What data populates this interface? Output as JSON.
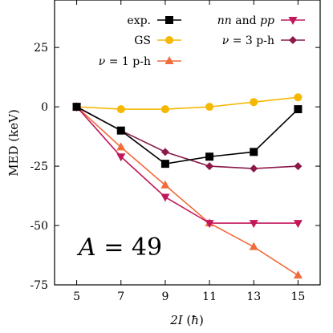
{
  "chart_data": {
    "type": "line",
    "title": "",
    "xlabel": "2I (ħ)",
    "ylabel": "MED (keV)",
    "x": [
      5,
      7,
      9,
      11,
      13,
      15
    ],
    "xlim": [
      4,
      16
    ],
    "ylim": [
      -75,
      45
    ],
    "xticks": [
      5,
      7,
      9,
      11,
      13,
      15
    ],
    "yticks": [
      25,
      0,
      -25,
      -50,
      -75
    ],
    "xtick_labels": [
      "5",
      "7",
      "9",
      "11",
      "13",
      "15"
    ],
    "ytick_labels": [
      "25",
      "0",
      "-25",
      "-50",
      "-75"
    ],
    "annotation": "A = 49",
    "legend_position": "top",
    "grid": false,
    "series": [
      {
        "name": "exp.",
        "color": "#000000",
        "marker": "square",
        "values": [
          0,
          -10,
          -24,
          -21,
          -19,
          -1
        ]
      },
      {
        "name": "GS",
        "color": "#f5b800",
        "marker": "circle",
        "values": [
          0,
          -1,
          -1,
          0,
          2,
          4
        ]
      },
      {
        "name": "ν = 1 p-h",
        "color": "#f26b3a",
        "marker": "triangle-up",
        "values": [
          0,
          -17,
          -33,
          -49,
          -59,
          -71
        ]
      },
      {
        "name": "nn and pp",
        "color": "#c2185b",
        "marker": "triangle-down",
        "values": [
          0,
          -21,
          -38,
          -49,
          -49,
          -49
        ]
      },
      {
        "name": "ν = 3 p-h",
        "color": "#8b1a4a",
        "marker": "diamond",
        "values": [
          0,
          -10,
          -19,
          -25,
          -26,
          -25
        ]
      }
    ]
  }
}
